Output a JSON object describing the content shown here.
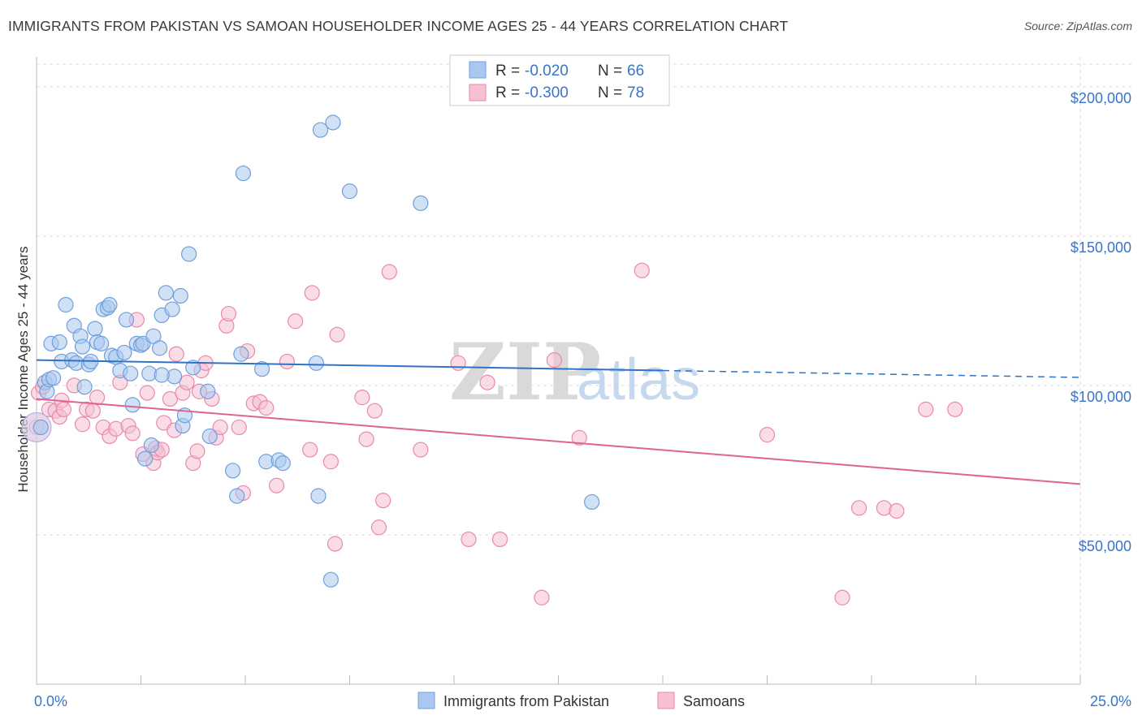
{
  "header": {
    "title": "IMMIGRANTS FROM PAKISTAN VS SAMOAN HOUSEHOLDER INCOME AGES 25 - 44 YEARS CORRELATION CHART",
    "source": "Source: ZipAtlas.com"
  },
  "watermark": {
    "zip": "ZIP",
    "atlas": "atlas"
  },
  "colors": {
    "blue_fill": "#aac8ef",
    "blue_stroke": "#6f9fdc",
    "blue_line": "#2f73c8",
    "pink_fill": "#f6bfd2",
    "pink_stroke": "#e88aac",
    "pink_line": "#e0648f",
    "tick_text": "#3a74c9",
    "grid": "#dddddd"
  },
  "legend": {
    "rows": [
      {
        "r_label": "R = ",
        "r_value": "-0.020",
        "n_label": "N = ",
        "n_value": "66",
        "color": "blue"
      },
      {
        "r_label": "R = ",
        "r_value": "-0.300",
        "n_label": "N = ",
        "n_value": "78",
        "color": "pink"
      }
    ]
  },
  "chart_data": {
    "type": "scatter",
    "title": "IMMIGRANTS FROM PAKISTAN VS SAMOAN HOUSEHOLDER INCOME AGES 25 - 44 YEARS CORRELATION CHART",
    "xlabel": "",
    "ylabel": "Householder Income Ages 25 - 44 years",
    "xlim": [
      0,
      25
    ],
    "ylim": [
      0,
      210000
    ],
    "x_tick_labels": [
      "0.0%",
      "25.0%"
    ],
    "y_ticks": [
      50000,
      100000,
      150000,
      200000
    ],
    "y_tick_labels": [
      "$50,000",
      "$100,000",
      "$150,000",
      "$200,000"
    ],
    "grid": true,
    "legend_position": "top-center",
    "series": [
      {
        "name": "Immigrants from Pakistan",
        "color": "blue",
        "r": -0.02,
        "n": 66,
        "trend": {
          "x0": 0,
          "y0": 108500,
          "x1": 15,
          "y1": 105000,
          "x_dash_end": 25,
          "y_dash_end": 102700
        },
        "points": [
          [
            0.1,
            86000
          ],
          [
            0.2,
            101000
          ],
          [
            0.25,
            98000
          ],
          [
            0.3,
            102000
          ],
          [
            0.4,
            102500
          ],
          [
            0.35,
            114000
          ],
          [
            0.55,
            114500
          ],
          [
            0.6,
            108000
          ],
          [
            0.7,
            127000
          ],
          [
            0.85,
            108500
          ],
          [
            0.9,
            120000
          ],
          [
            0.95,
            107500
          ],
          [
            1.05,
            116500
          ],
          [
            1.1,
            113000
          ],
          [
            1.15,
            99500
          ],
          [
            1.25,
            107000
          ],
          [
            1.3,
            108000
          ],
          [
            1.4,
            119000
          ],
          [
            1.45,
            114500
          ],
          [
            1.55,
            114000
          ],
          [
            1.6,
            125500
          ],
          [
            1.7,
            126000
          ],
          [
            1.75,
            127000
          ],
          [
            1.8,
            110000
          ],
          [
            1.9,
            109500
          ],
          [
            2.0,
            105000
          ],
          [
            2.1,
            111000
          ],
          [
            2.15,
            122000
          ],
          [
            2.25,
            104000
          ],
          [
            2.3,
            93500
          ],
          [
            2.4,
            114000
          ],
          [
            2.5,
            113500
          ],
          [
            2.55,
            114000
          ],
          [
            2.6,
            75500
          ],
          [
            2.7,
            104000
          ],
          [
            2.75,
            80000
          ],
          [
            2.8,
            116500
          ],
          [
            2.95,
            112500
          ],
          [
            3.0,
            123500
          ],
          [
            3.1,
            131000
          ],
          [
            3.25,
            125500
          ],
          [
            3.3,
            103000
          ],
          [
            3.45,
            130000
          ],
          [
            3.5,
            86500
          ],
          [
            3.55,
            90000
          ],
          [
            3.65,
            144000
          ],
          [
            3.75,
            106000
          ],
          [
            4.1,
            98000
          ],
          [
            4.15,
            83000
          ],
          [
            4.7,
            71500
          ],
          [
            4.8,
            63000
          ],
          [
            4.9,
            110500
          ],
          [
            4.95,
            171000
          ],
          [
            5.4,
            105500
          ],
          [
            5.5,
            74500
          ],
          [
            5.8,
            75000
          ],
          [
            5.9,
            74000
          ],
          [
            6.7,
            107500
          ],
          [
            6.75,
            63000
          ],
          [
            6.8,
            185500
          ],
          [
            7.05,
            35000
          ],
          [
            7.1,
            188000
          ],
          [
            7.5,
            165000
          ],
          [
            9.2,
            161000
          ],
          [
            3.0,
            103500
          ],
          [
            13.3,
            61000
          ]
        ]
      },
      {
        "name": "Samoans",
        "color": "pink",
        "r": -0.3,
        "n": 78,
        "trend": {
          "x0": 0,
          "y0": 95500,
          "x1": 25,
          "y1": 67000
        },
        "points": [
          [
            0.05,
            97500
          ],
          [
            0.15,
            99500
          ],
          [
            0.3,
            92000
          ],
          [
            0.45,
            91500
          ],
          [
            0.55,
            89500
          ],
          [
            0.6,
            95000
          ],
          [
            0.65,
            92000
          ],
          [
            0.9,
            100000
          ],
          [
            1.1,
            87000
          ],
          [
            1.2,
            92000
          ],
          [
            1.35,
            91500
          ],
          [
            1.45,
            96000
          ],
          [
            1.6,
            86000
          ],
          [
            1.75,
            83000
          ],
          [
            1.9,
            85500
          ],
          [
            2.0,
            101000
          ],
          [
            2.2,
            86500
          ],
          [
            2.3,
            84000
          ],
          [
            2.4,
            122000
          ],
          [
            2.55,
            77000
          ],
          [
            2.65,
            97500
          ],
          [
            2.8,
            74000
          ],
          [
            2.85,
            79000
          ],
          [
            2.9,
            77500
          ],
          [
            3.0,
            78500
          ],
          [
            3.05,
            87500
          ],
          [
            3.2,
            95500
          ],
          [
            3.3,
            85000
          ],
          [
            3.35,
            110500
          ],
          [
            3.5,
            97500
          ],
          [
            3.6,
            101000
          ],
          [
            3.75,
            74000
          ],
          [
            3.85,
            78000
          ],
          [
            3.9,
            98000
          ],
          [
            3.95,
            105000
          ],
          [
            4.05,
            107500
          ],
          [
            4.2,
            95500
          ],
          [
            4.3,
            82500
          ],
          [
            4.4,
            86000
          ],
          [
            4.55,
            120000
          ],
          [
            4.6,
            124000
          ],
          [
            4.85,
            86000
          ],
          [
            4.95,
            64000
          ],
          [
            5.05,
            111500
          ],
          [
            5.2,
            94000
          ],
          [
            5.35,
            94500
          ],
          [
            5.5,
            92500
          ],
          [
            5.75,
            66500
          ],
          [
            6.0,
            108000
          ],
          [
            6.2,
            121500
          ],
          [
            6.55,
            78500
          ],
          [
            6.6,
            131000
          ],
          [
            7.05,
            74500
          ],
          [
            7.15,
            47000
          ],
          [
            7.2,
            117000
          ],
          [
            7.8,
            96000
          ],
          [
            7.9,
            82000
          ],
          [
            8.1,
            91500
          ],
          [
            8.2,
            52500
          ],
          [
            8.3,
            61500
          ],
          [
            8.45,
            138000
          ],
          [
            9.2,
            78500
          ],
          [
            10.1,
            107500
          ],
          [
            10.35,
            48500
          ],
          [
            10.8,
            101000
          ],
          [
            11.1,
            48500
          ],
          [
            12.1,
            29000
          ],
          [
            12.4,
            108500
          ],
          [
            13.0,
            82500
          ],
          [
            14.5,
            138500
          ],
          [
            17.5,
            83500
          ],
          [
            19.3,
            29000
          ],
          [
            19.7,
            59000
          ],
          [
            20.3,
            59000
          ],
          [
            20.6,
            58000
          ],
          [
            21.3,
            92000
          ],
          [
            22.0,
            92000
          ],
          [
            0.0,
            86000
          ]
        ]
      }
    ]
  },
  "bottom_legend": {
    "items": [
      {
        "label": "Immigrants from Pakistan",
        "color": "blue"
      },
      {
        "label": "Samoans",
        "color": "pink"
      }
    ]
  }
}
